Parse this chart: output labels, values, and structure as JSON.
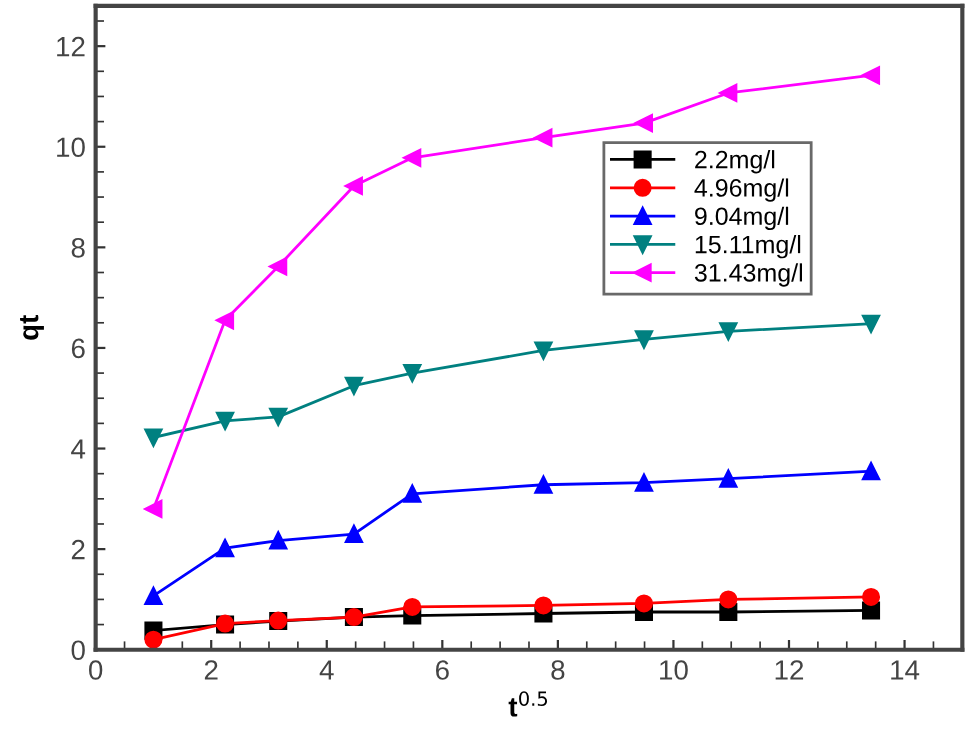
{
  "chart_data": {
    "type": "line",
    "xlabel": "t$^{0.5}$",
    "ylabel": "qt",
    "x": [
      1,
      2.24,
      3.16,
      4.47,
      5.48,
      7.75,
      9.49,
      10.95,
      13.42
    ],
    "xlim": [
      0,
      15
    ],
    "xticks": [
      0,
      2,
      4,
      6,
      8,
      10,
      12,
      14
    ],
    "ylim": [
      0,
      12.8
    ],
    "yticks": [
      0,
      2,
      4,
      6,
      8,
      10,
      12
    ],
    "grid": false,
    "legend": "right",
    "series": [
      {
        "name": "2.2mg/l",
        "color": "#000000",
        "marker": "square",
        "values": [
          0.38,
          0.5,
          0.57,
          0.65,
          0.68,
          0.72,
          0.75,
          0.75,
          0.78
        ]
      },
      {
        "name": "4.96mg/l",
        "color": "#ff0000",
        "marker": "circle",
        "values": [
          0.2,
          0.52,
          0.58,
          0.65,
          0.85,
          0.88,
          0.92,
          1.0,
          1.05
        ]
      },
      {
        "name": "9.04mg/l",
        "color": "#0000ff",
        "marker": "triangle",
        "values": [
          1.07,
          2.02,
          2.17,
          2.3,
          3.1,
          3.28,
          3.32,
          3.4,
          3.55
        ]
      },
      {
        "name": "15.11mg/l",
        "color": "#008080",
        "marker": "triangle_down",
        "values": [
          4.22,
          4.55,
          4.63,
          5.25,
          5.5,
          5.95,
          6.17,
          6.33,
          6.48
        ]
      },
      {
        "name": "31.43mg/l",
        "color": "#ff00ff",
        "marker": "triangle_left",
        "values": [
          2.8,
          6.55,
          7.62,
          9.22,
          9.78,
          10.18,
          10.47,
          11.07,
          11.42
        ]
      }
    ]
  }
}
